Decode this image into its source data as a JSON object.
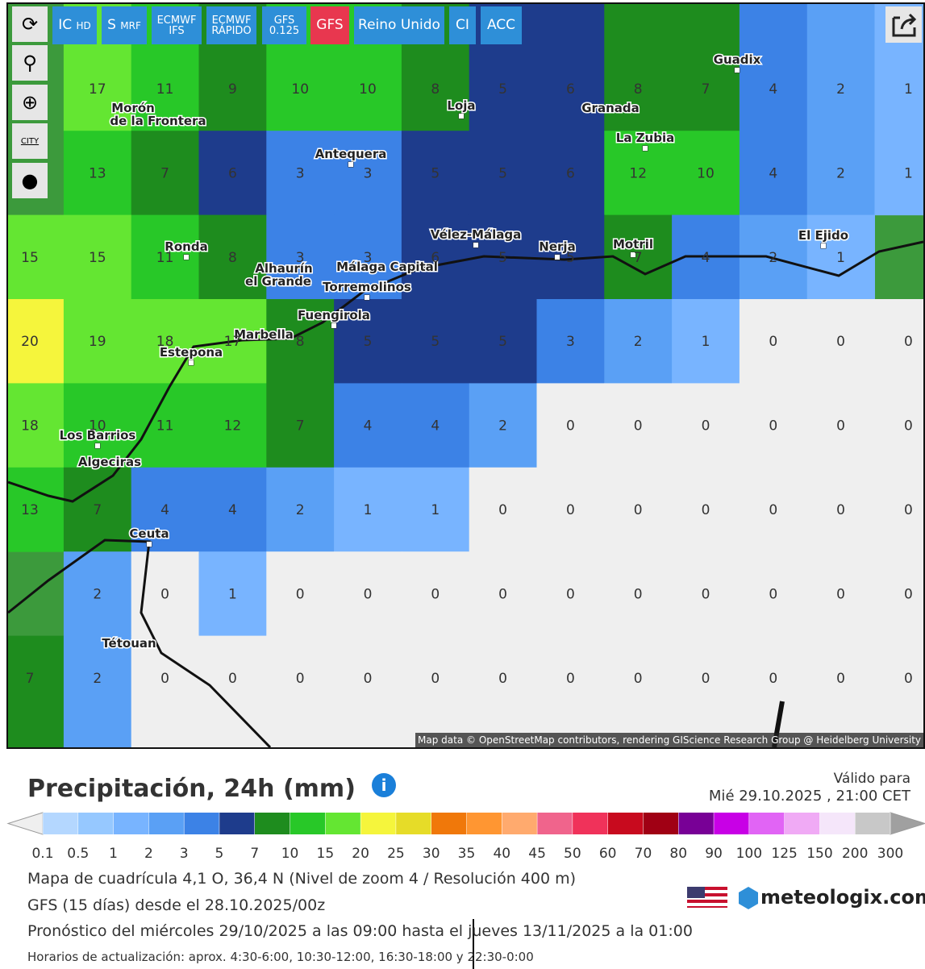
{
  "toolbar": {
    "buttons": [
      {
        "label": "IC",
        "small": "HD"
      },
      {
        "label": "S",
        "small": "MRF"
      },
      {
        "lines": [
          "ECMWF",
          "IFS"
        ]
      },
      {
        "lines": [
          "ECMWF",
          "RÁPIDO"
        ]
      },
      {
        "lines": [
          "GFS",
          "0.125"
        ]
      },
      {
        "label": "GFS",
        "active": true
      },
      {
        "label": "Reino Unido"
      },
      {
        "label": "CI"
      },
      {
        "label": "ACC"
      }
    ],
    "city_button": "CITY"
  },
  "map": {
    "cities": [
      "Guadix",
      "Loja",
      "Granada",
      "Morón",
      "de la Frontera",
      "La Zubia",
      "Antequera",
      "Vélez-Málaga",
      "Nerja",
      "Motril",
      "El Ejido",
      "Ronda",
      "Alhaurín",
      "el Grande",
      "Málaga Capital",
      "Torremolinos",
      "Fuengirola",
      "Marbella",
      "Estepona",
      "Los Barrios",
      "Algeciras",
      "Ceuta",
      "Tétouan"
    ],
    "attribution": "Map data © OpenStreetMap contributors, rendering GIScience Research Group @ Heidelberg University",
    "grid": [
      [
        null,
        17,
        11,
        9,
        10,
        10,
        8,
        5,
        6,
        8,
        7,
        4,
        2,
        1
      ],
      [
        null,
        13,
        7,
        6,
        3,
        3,
        5,
        5,
        6,
        12,
        10,
        4,
        2,
        1
      ],
      [
        15,
        15,
        11,
        8,
        3,
        3,
        6,
        5,
        5,
        7,
        4,
        2,
        1,
        null
      ],
      [
        20,
        19,
        18,
        17,
        8,
        5,
        5,
        5,
        3,
        2,
        1,
        0,
        0,
        0
      ],
      [
        18,
        10,
        11,
        12,
        7,
        4,
        4,
        2,
        0,
        0,
        0,
        0,
        0,
        0
      ],
      [
        13,
        7,
        4,
        4,
        2,
        1,
        1,
        0,
        0,
        0,
        0,
        0,
        0,
        0
      ],
      [
        null,
        2,
        0,
        1,
        0,
        0,
        0,
        0,
        0,
        0,
        0,
        0,
        0,
        0
      ],
      [
        7,
        2,
        0,
        0,
        0,
        0,
        0,
        0,
        0,
        0,
        0,
        0,
        0,
        0
      ]
    ]
  },
  "legend": {
    "title": "Precipitación, 24h (mm)",
    "ticks": [
      0.1,
      0.5,
      1,
      2,
      3,
      5,
      7,
      10,
      15,
      20,
      25,
      30,
      35,
      40,
      45,
      50,
      60,
      70,
      80,
      90,
      100,
      125,
      150,
      200,
      300
    ],
    "colors": [
      "#b4d7ff",
      "#96c8ff",
      "#78b4ff",
      "#5aa0f5",
      "#3c82e6",
      "#1e3c8c",
      "#1e8c1e",
      "#28c828",
      "#64e632",
      "#f5f53c",
      "#e6dc28",
      "#f0780a",
      "#ff9632",
      "#ffaa6e",
      "#f0648c",
      "#f0325a",
      "#c80a1e",
      "#a00014",
      "#780096",
      "#c800e6",
      "#e164f5",
      "#f0aaf5",
      "#f5e6fa",
      "#c8c8c8"
    ],
    "below_color": "#efefef",
    "above_color": "#a0a0a0"
  },
  "valid": {
    "label": "Válido para",
    "date": "Mié 29.10.2025 , 21:00 CET"
  },
  "info": [
    "Mapa de cuadrícula 4,1 O, 36,4 N (Nivel de zoom 4 / Resolución 400 m)",
    "GFS (15 días) desde el 28.10.2025/00z",
    "Pronóstico del miércoles 29/10/2025 a las 09:00 hasta el jueves 13/11/2025 a la 01:00",
    "Horarios de actualización: aprox. 4:30-6:00, 10:30-12:00, 16:30-18:00 y 22:30-0:00"
  ],
  "brand": "meteologix.com"
}
